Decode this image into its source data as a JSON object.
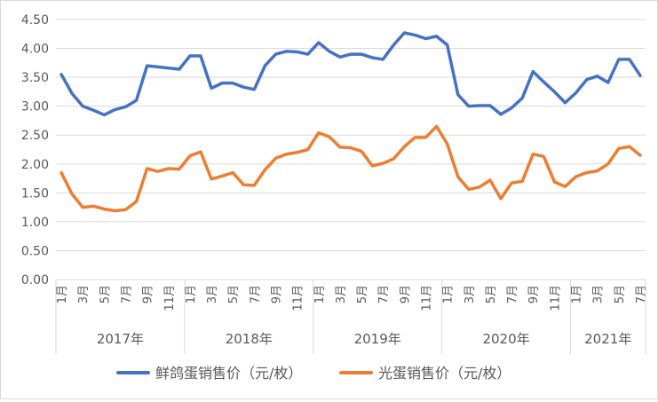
{
  "chart_data": {
    "type": "line",
    "ylim": [
      0,
      4.5
    ],
    "y_ticks": [
      "0.00",
      "0.50",
      "1.00",
      "1.50",
      "2.00",
      "2.50",
      "3.00",
      "3.50",
      "4.00",
      "4.50"
    ],
    "grid": true,
    "legend_position": "bottom",
    "month_labels": [
      "1月",
      "3月",
      "5月",
      "7月",
      "9月",
      "11月",
      "1月",
      "3月",
      "5月",
      "7月",
      "9月",
      "11月",
      "1月",
      "3月",
      "5月",
      "7月",
      "9月",
      "11月",
      "1月",
      "3月",
      "5月",
      "7月",
      "9月",
      "11月",
      "1月",
      "3月",
      "5月",
      "7月"
    ],
    "month_label_index": [
      0,
      2,
      4,
      6,
      8,
      10,
      12,
      14,
      16,
      18,
      20,
      22,
      24,
      26,
      28,
      30,
      32,
      34,
      36,
      38,
      40,
      42,
      44,
      46,
      48,
      50,
      52,
      54
    ],
    "year_groups": [
      {
        "label": "2017年",
        "start": 0,
        "end": 11
      },
      {
        "label": "2018年",
        "start": 12,
        "end": 23
      },
      {
        "label": "2019年",
        "start": 24,
        "end": 35
      },
      {
        "label": "2020年",
        "start": 36,
        "end": 47
      },
      {
        "label": "2021年",
        "start": 48,
        "end": 54
      }
    ],
    "series": [
      {
        "name": "鲜鸽蛋销售价（元/枚）",
        "color": "#4472C4",
        "values": [
          3.55,
          3.22,
          3.0,
          2.93,
          2.85,
          2.94,
          2.99,
          3.1,
          3.7,
          3.68,
          3.66,
          3.64,
          3.87,
          3.87,
          3.31,
          3.4,
          3.4,
          3.33,
          3.29,
          3.7,
          3.9,
          3.95,
          3.94,
          3.9,
          4.1,
          3.95,
          3.85,
          3.9,
          3.9,
          3.84,
          3.81,
          4.06,
          4.27,
          4.23,
          4.17,
          4.21,
          4.06,
          3.2,
          3.0,
          3.01,
          3.01,
          2.86,
          2.97,
          3.14,
          3.6,
          3.42,
          3.25,
          3.06,
          3.23,
          3.46,
          3.52,
          3.41,
          3.81,
          3.81,
          3.53
        ]
      },
      {
        "name": "光蛋销售价（元/枚）",
        "color": "#ED7D31",
        "values": [
          1.85,
          1.48,
          1.25,
          1.27,
          1.22,
          1.19,
          1.21,
          1.35,
          1.92,
          1.87,
          1.92,
          1.91,
          2.14,
          2.21,
          1.74,
          1.79,
          1.85,
          1.64,
          1.63,
          1.9,
          2.1,
          2.17,
          2.2,
          2.25,
          2.54,
          2.47,
          2.29,
          2.28,
          2.22,
          1.97,
          2.01,
          2.09,
          2.3,
          2.46,
          2.46,
          2.65,
          2.35,
          1.78,
          1.56,
          1.6,
          1.72,
          1.4,
          1.67,
          1.7,
          2.17,
          2.13,
          1.69,
          1.61,
          1.78,
          1.85,
          1.88,
          2.0,
          2.27,
          2.3,
          2.15
        ]
      }
    ]
  }
}
